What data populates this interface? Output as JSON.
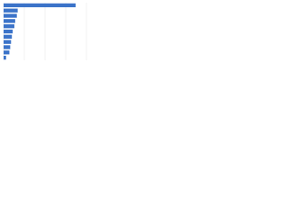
{
  "chart_data": {
    "type": "bar",
    "orientation": "horizontal",
    "categories": [
      null,
      null,
      null,
      null,
      null,
      null,
      null,
      null,
      null,
      null,
      null
    ],
    "values": [
      87,
      17,
      16,
      14,
      13,
      11,
      10,
      9,
      8,
      7,
      3
    ],
    "color": "#3b73c9",
    "xlim": [
      0,
      100
    ],
    "xticks": [
      0,
      25,
      50,
      75,
      100
    ],
    "grid": true
  }
}
